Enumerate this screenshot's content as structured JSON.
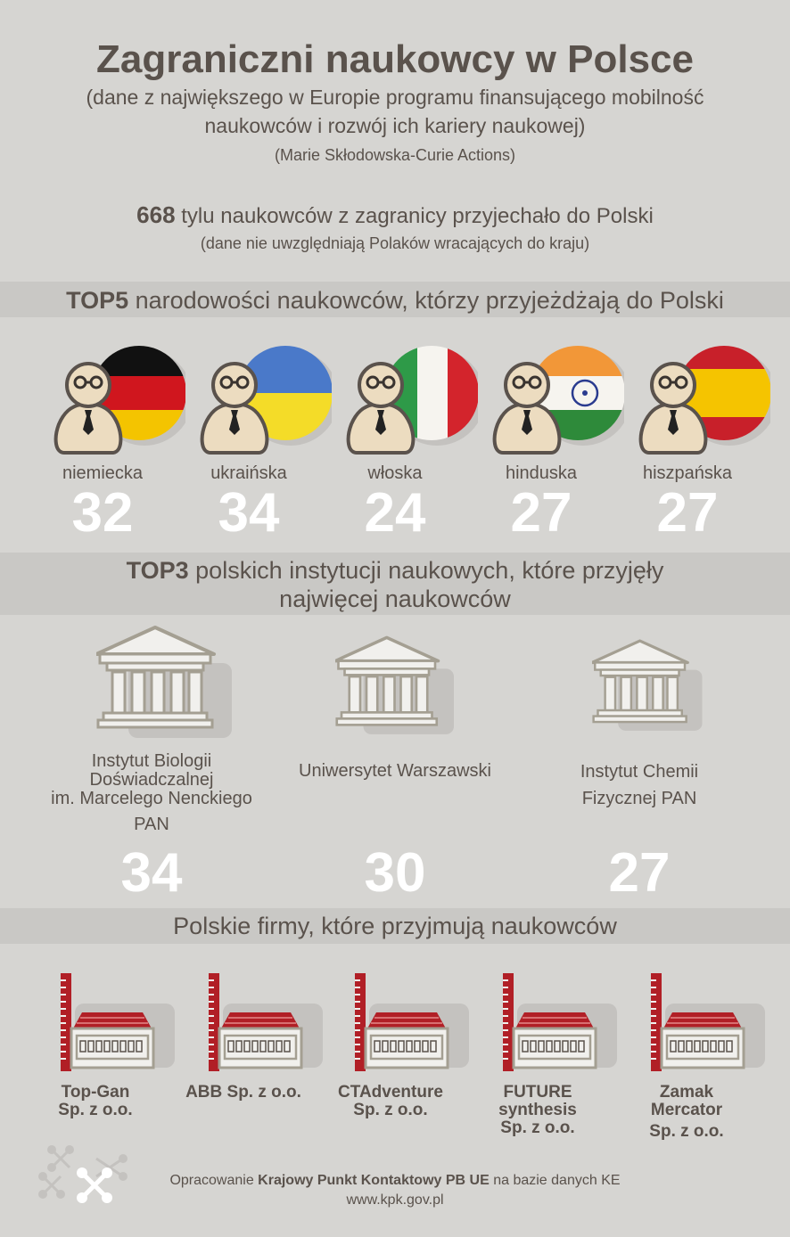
{
  "header": {
    "title": "Zagraniczni naukowcy w Polsce",
    "subtitle_line1": "(dane z największego w Europie programu finansującego mobilność",
    "subtitle_line2": "naukowców i rozwój ich kariery naukowej)",
    "program": "(Marie Skłodowska-Curie Actions)"
  },
  "total": {
    "count": "668",
    "text": " tylu naukowców z zagranicy przyjechało do Polski",
    "note": "(dane nie uwzględniają Polaków wracających do kraju)"
  },
  "top5": {
    "title_bold": "TOP5",
    "title_rest": " narodowości naukowców, którzy przyjeżdżają do Polski",
    "items": [
      {
        "label": "niemiecka",
        "value": "32",
        "flag": "germany-flag-icon"
      },
      {
        "label": "ukraińska",
        "value": "34",
        "flag": "ukraine-flag-icon"
      },
      {
        "label": "włoska",
        "value": "24",
        "flag": "italy-flag-icon"
      },
      {
        "label": "hinduska",
        "value": "27",
        "flag": "india-flag-icon"
      },
      {
        "label": "hiszpańska",
        "value": "27",
        "flag": "spain-flag-icon"
      }
    ]
  },
  "top3": {
    "title_bold": "TOP3",
    "title_rest_line1": " polskich instytucji naukowych, które przyjęły",
    "title_line2": "najwięcej naukowców",
    "items": [
      {
        "line1": "Instytut Biologii",
        "line2": "Doświadczalnej",
        "line3": "im. Marcelego Nenckiego",
        "line4": "PAN",
        "value": "34"
      },
      {
        "line1": "Uniwersytet Warszawski",
        "value": "30"
      },
      {
        "line1": "Instytut Chemii",
        "line2": "Fizycznej PAN",
        "value": "27"
      }
    ]
  },
  "firms": {
    "title": "Polskie firmy, które przyjmują naukowców",
    "items": [
      {
        "line1": "Top-Gan",
        "line2": "Sp. z o.o."
      },
      {
        "line1": "ABB Sp. z o.o."
      },
      {
        "line1": "CTAdventure",
        "line2": "Sp. z o.o."
      },
      {
        "line1": "FUTURE",
        "line2": "synthesis",
        "line3": "Sp. z o.o."
      },
      {
        "line1": "Zamak",
        "line2": "Mercator",
        "line3": "Sp. z o.o."
      }
    ]
  },
  "footer": {
    "prefix": "Opracowanie ",
    "org": "Krajowy Punkt Kontaktowy PB UE",
    "suffix": " na bazie danych KE",
    "url": "www.kpk.gov.pl"
  },
  "colors": {
    "background": "#d6d5d2",
    "band": "#c9c8c5",
    "text": "#5a524c",
    "accent_red": "#b11f26"
  }
}
